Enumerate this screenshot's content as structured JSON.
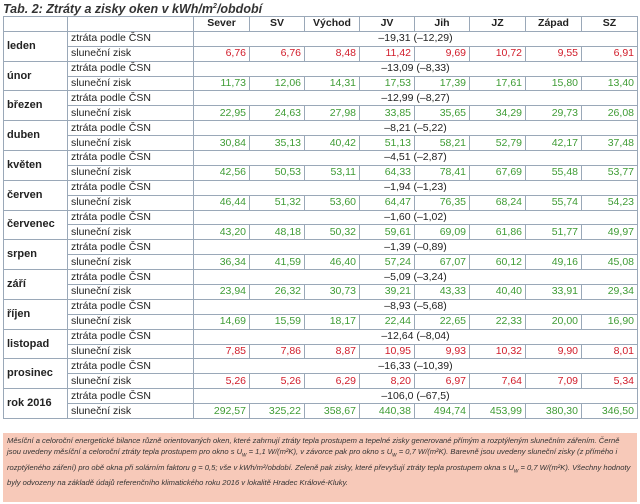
{
  "title": {
    "prefix": "Tab. 2: Ztráty a zisky oken v kWh/m",
    "sup": "2",
    "suffix": "/období"
  },
  "columns": [
    "",
    "",
    "Sever",
    "SV",
    "Východ",
    "JV",
    "Jih",
    "JZ",
    "Západ",
    "SZ"
  ],
  "row_labels": {
    "loss": "ztráta podle ČSN",
    "gain": "sluneční zisk"
  },
  "months": [
    {
      "name": "leden",
      "loss": "–19,31 (–12,29)",
      "color": "red",
      "gains": [
        "6,76",
        "6,76",
        "8,48",
        "11,42",
        "9,69",
        "10,72",
        "9,55",
        "6,91"
      ]
    },
    {
      "name": "únor",
      "loss": "–13,09 (–8,33)",
      "color": "green",
      "gains": [
        "11,73",
        "12,06",
        "14,31",
        "17,53",
        "17,39",
        "17,61",
        "15,80",
        "13,40"
      ]
    },
    {
      "name": "březen",
      "loss": "–12,99 (–8,27)",
      "color": "green",
      "gains": [
        "22,95",
        "24,63",
        "27,98",
        "33,85",
        "35,65",
        "34,29",
        "29,73",
        "26,08"
      ]
    },
    {
      "name": "duben",
      "loss": "–8,21 (–5,22)",
      "color": "green",
      "gains": [
        "30,84",
        "35,13",
        "40,42",
        "51,13",
        "58,21",
        "52,79",
        "42,17",
        "37,48"
      ]
    },
    {
      "name": "květen",
      "loss": "–4,51 (–2,87)",
      "color": "green",
      "gains": [
        "42,56",
        "50,53",
        "53,11",
        "64,33",
        "78,41",
        "67,69",
        "55,48",
        "53,77"
      ]
    },
    {
      "name": "červen",
      "loss": "–1,94 (–1,23)",
      "color": "green",
      "gains": [
        "46,44",
        "51,32",
        "53,60",
        "64,47",
        "76,35",
        "68,24",
        "55,74",
        "54,23"
      ]
    },
    {
      "name": "červenec",
      "loss": "–1,60 (–1,02)",
      "color": "green",
      "gains": [
        "43,20",
        "48,18",
        "50,32",
        "59,61",
        "69,09",
        "61,86",
        "51,77",
        "49,97"
      ]
    },
    {
      "name": "srpen",
      "loss": "–1,39 (–0,89)",
      "color": "green",
      "gains": [
        "36,34",
        "41,59",
        "46,40",
        "57,24",
        "67,07",
        "60,12",
        "49,16",
        "45,08"
      ]
    },
    {
      "name": "září",
      "loss": "–5,09 (–3,24)",
      "color": "green",
      "gains": [
        "23,94",
        "26,32",
        "30,73",
        "39,21",
        "43,33",
        "40,40",
        "33,91",
        "29,34"
      ]
    },
    {
      "name": "říjen",
      "loss": "–8,93 (–5,68)",
      "color": "green",
      "gains": [
        "14,69",
        "15,59",
        "18,17",
        "22,44",
        "22,65",
        "22,33",
        "20,00",
        "16,90"
      ]
    },
    {
      "name": "listopad",
      "loss": "–12,64 (–8,04)",
      "color": "red",
      "gains": [
        "7,85",
        "7,86",
        "8,87",
        "10,95",
        "9,93",
        "10,32",
        "9,90",
        "8,01"
      ]
    },
    {
      "name": "prosinec",
      "loss": "–16,33 (–10,39)",
      "color": "red",
      "gains": [
        "5,26",
        "5,26",
        "6,29",
        "8,20",
        "6,97",
        "7,64",
        "7,09",
        "5,34"
      ]
    },
    {
      "name": "rok 2016",
      "loss": "–106,0 (–67,5)",
      "color": "green",
      "gains": [
        "292,57",
        "325,22",
        "358,67",
        "440,38",
        "494,74",
        "453,99",
        "380,30",
        "346,50"
      ]
    }
  ],
  "colors": {
    "red": "#d11c2a",
    "green": "#3f9c35",
    "note_bg": "#f7c9b9",
    "border": "#9aa8b8"
  },
  "note": {
    "p1": "Měsíční a celoroční energetické bilance různě orientovaných oken, které zahrnují ztráty tepla prostupem a tepelné zisky generované přímým a rozptýleným slunečním zářením. Černě jsou uvedeny měsíční a celoroční ztráty tepla prostupem pro okno s U",
    "s1": "w",
    "p2": " = 1,1 W/(m²K), v závorce pak pro okno s U",
    "s2": "w",
    "p3": " = 0,7 W/(m²K). Barevně jsou uvedeny sluneční zisky (z přímého i rozptýleného záření) pro obě okna při solárním faktoru g = 0,5; vše v kWh/m²/období. Zeleně pak zisky, které převyšují ztráty tepla prostupem okna s U",
    "s3": "w",
    "p4": " = 0,7 W/(m²K). Všechny hodnoty byly odvozeny na základě údajů referenčního klimatického roku 2016 v lokalitě Hradec Králové-Kluky."
  }
}
